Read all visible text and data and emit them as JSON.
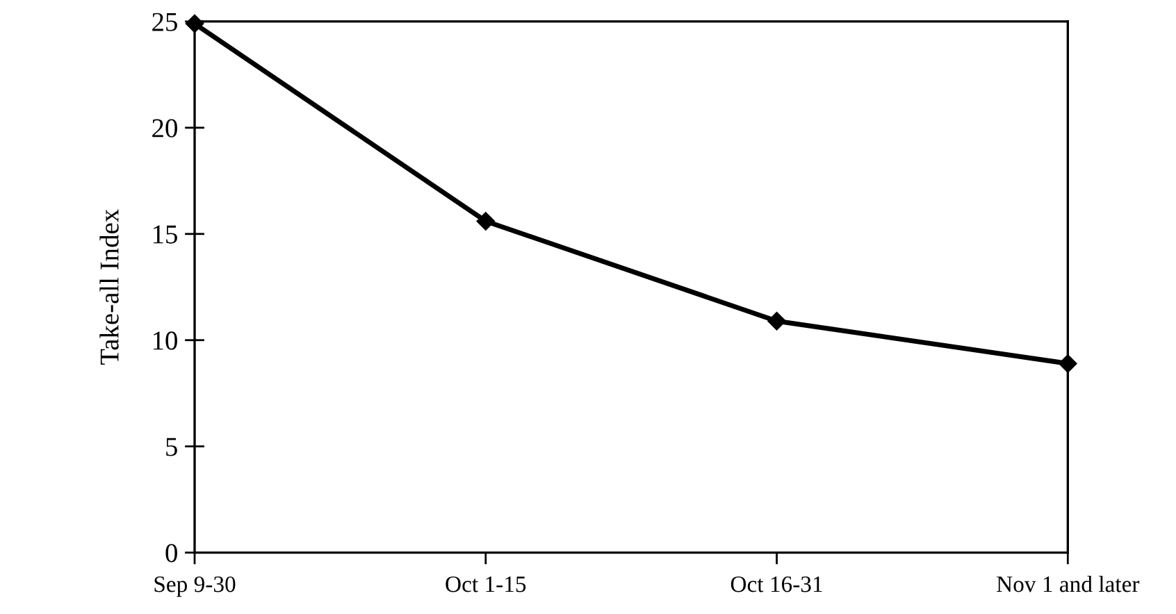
{
  "chart_data": {
    "type": "line",
    "ylabel": "Take-all Index",
    "categories": [
      "Sep 9-30",
      "Oct 1-15",
      "Oct 16-31",
      "Nov 1 and later"
    ],
    "series": [
      {
        "color": "#000000",
        "values": [
          24.9,
          15.6,
          10.9,
          8.9
        ]
      }
    ],
    "ylim": [
      0,
      25
    ],
    "yticks": [
      0,
      5,
      10,
      15,
      20,
      25
    ],
    "marker": "diamond",
    "line_style": "solid",
    "grid": false,
    "legend": false
  }
}
